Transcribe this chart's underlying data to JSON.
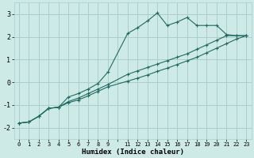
{
  "xlabel": "Humidex (Indice chaleur)",
  "bg_color": "#ceeae6",
  "grid_color": "#aacfcc",
  "line_color": "#1e6b60",
  "xlim": [
    -0.5,
    23.5
  ],
  "ylim": [
    -2.5,
    3.5
  ],
  "yticks": [
    -2,
    -1,
    0,
    1,
    2,
    3
  ],
  "xtick_vals": [
    0,
    1,
    2,
    3,
    4,
    5,
    6,
    7,
    8,
    9,
    10,
    11,
    12,
    13,
    14,
    15,
    16,
    17,
    18,
    19,
    20,
    21,
    22,
    23
  ],
  "xtick_labels": [
    "0",
    "1",
    "2",
    "3",
    "4",
    "5",
    "6",
    "7",
    "8",
    "9",
    "",
    "11",
    "12",
    "13",
    "14",
    "15",
    "16",
    "17",
    "18",
    "19",
    "20",
    "21",
    "22",
    "23"
  ],
  "line1_x": [
    0,
    1,
    2,
    3,
    4,
    5,
    6,
    7,
    8,
    9,
    11,
    12,
    13,
    14,
    15,
    16,
    17,
    18,
    19,
    20,
    21,
    22,
    23
  ],
  "line1_y": [
    -1.8,
    -1.75,
    -1.5,
    -1.15,
    -1.1,
    -0.65,
    -0.5,
    -0.3,
    -0.05,
    0.45,
    2.15,
    2.4,
    2.7,
    3.05,
    2.5,
    2.65,
    2.85,
    2.5,
    2.5,
    2.5,
    2.1,
    2.05,
    2.05
  ],
  "line2_x": [
    0,
    1,
    2,
    3,
    4,
    5,
    6,
    7,
    8,
    9,
    11,
    12,
    13,
    14,
    15,
    16,
    17,
    18,
    19,
    20,
    21,
    22,
    23
  ],
  "line2_y": [
    -1.8,
    -1.75,
    -1.5,
    -1.15,
    -1.1,
    -0.85,
    -0.7,
    -0.5,
    -0.3,
    -0.1,
    0.35,
    0.5,
    0.65,
    0.8,
    0.95,
    1.1,
    1.25,
    1.45,
    1.65,
    1.85,
    2.05,
    2.05,
    2.05
  ],
  "line3_x": [
    0,
    1,
    2,
    3,
    4,
    5,
    6,
    7,
    8,
    9,
    11,
    12,
    13,
    14,
    15,
    16,
    17,
    18,
    19,
    20,
    21,
    22,
    23
  ],
  "line3_y": [
    -1.8,
    -1.75,
    -1.5,
    -1.15,
    -1.1,
    -0.9,
    -0.78,
    -0.6,
    -0.4,
    -0.2,
    0.05,
    0.18,
    0.32,
    0.48,
    0.62,
    0.78,
    0.94,
    1.1,
    1.3,
    1.5,
    1.7,
    1.9,
    2.05
  ]
}
